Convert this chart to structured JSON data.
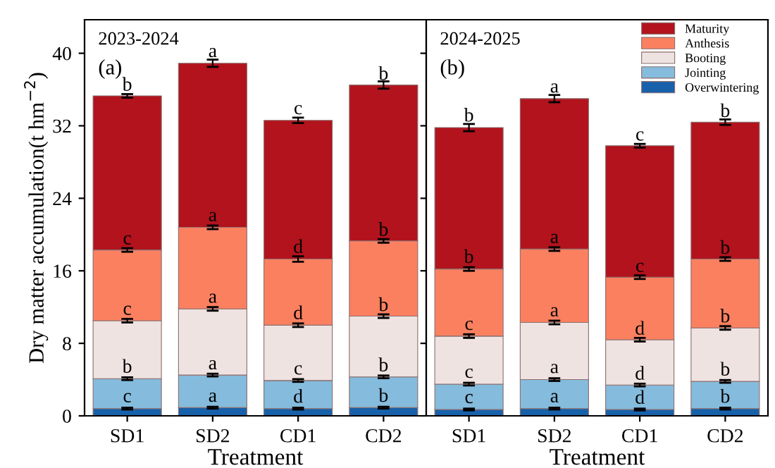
{
  "chart_data": [
    {
      "type": "bar",
      "stacked": true,
      "title": "2023-2024",
      "subtitle": "(a)",
      "xlabel": "Treatment",
      "ylabel": "Dry matter accumulation(t hm$^{−2}$)",
      "categories": [
        "SD1",
        "SD2",
        "CD1",
        "CD2"
      ],
      "ylim": [
        0,
        43.7
      ],
      "yticks": [
        0,
        8,
        16,
        24,
        32,
        40
      ],
      "legend": false,
      "grid": false,
      "series": [
        {
          "color": "#1761aa",
          "values": [
            0.8,
            0.9,
            0.8,
            0.9
          ],
          "errors": [
            0.1,
            0.1,
            0.1,
            0.1
          ]
        },
        {
          "color": "#85bbdc",
          "values": [
            3.3,
            3.6,
            3.1,
            3.4
          ],
          "errors": [
            0.15,
            0.15,
            0.15,
            0.15
          ]
        },
        {
          "color": "#efe3e1",
          "values": [
            6.4,
            7.3,
            6.1,
            6.7
          ],
          "errors": [
            0.2,
            0.2,
            0.2,
            0.2
          ]
        },
        {
          "color": "#fb8060",
          "values": [
            7.8,
            9.0,
            7.3,
            8.3
          ],
          "errors": [
            0.2,
            0.2,
            0.3,
            0.2
          ]
        },
        {
          "color": "#b2131d",
          "values": [
            17.0,
            18.1,
            15.3,
            17.2
          ],
          "errors": [
            0.2,
            0.4,
            0.3,
            0.4
          ]
        }
      ],
      "annotations": [
        {
          "text": "c",
          "x": "SD1",
          "y": 0.83
        },
        {
          "text": "a",
          "x": "SD2",
          "y": 0.88
        },
        {
          "text": "d",
          "x": "CD1",
          "y": 0.78
        },
        {
          "text": "b",
          "x": "CD2",
          "y": 0.88
        },
        {
          "text": "b",
          "x": "SD1",
          "y": 4.09
        },
        {
          "text": "a",
          "x": "SD2",
          "y": 4.46
        },
        {
          "text": "c",
          "x": "CD1",
          "y": 3.89
        },
        {
          "text": "b",
          "x": "CD2",
          "y": 4.25
        },
        {
          "text": "c",
          "x": "SD1",
          "y": 10.47
        },
        {
          "text": "a",
          "x": "SD2",
          "y": 11.8
        },
        {
          "text": "d",
          "x": "CD1",
          "y": 10.0
        },
        {
          "text": "b",
          "x": "CD2",
          "y": 10.9
        },
        {
          "text": "c",
          "x": "SD1",
          "y": 18.24
        },
        {
          "text": "a",
          "x": "SD2",
          "y": 20.8
        },
        {
          "text": "d",
          "x": "CD1",
          "y": 17.3
        },
        {
          "text": "b",
          "x": "CD2",
          "y": 19.2
        },
        {
          "text": "b",
          "x": "SD1",
          "y": 35.2
        },
        {
          "text": "a",
          "x": "SD2",
          "y": 38.9
        },
        {
          "text": "c",
          "x": "CD1",
          "y": 32.6
        },
        {
          "text": "b",
          "x": "CD2",
          "y": 36.4
        }
      ]
    },
    {
      "type": "bar",
      "stacked": true,
      "title": "2024-2025",
      "subtitle": "(b)",
      "xlabel": "Treatment",
      "categories": [
        "SD1",
        "SD2",
        "CD1",
        "CD2"
      ],
      "ylim": [
        0,
        43.7
      ],
      "yticks": [
        0,
        8,
        16,
        24,
        32,
        40
      ],
      "tick_labels": "x",
      "legend": "top right",
      "grid": false,
      "series": [
        {
          "name": "Overwintering",
          "color": "#1761aa",
          "values": [
            0.7,
            0.8,
            0.7,
            0.8
          ],
          "errors": [
            0.1,
            0.1,
            0.1,
            0.1
          ]
        },
        {
          "name": "Jointing",
          "color": "#85bbdc",
          "values": [
            2.8,
            3.2,
            2.7,
            3.0
          ],
          "errors": [
            0.15,
            0.15,
            0.15,
            0.15
          ]
        },
        {
          "name": "Booting",
          "color": "#efe3e1",
          "values": [
            5.3,
            6.3,
            5.0,
            5.9
          ],
          "errors": [
            0.2,
            0.2,
            0.2,
            0.2
          ]
        },
        {
          "name": "Anthesis",
          "color": "#fb8060",
          "values": [
            7.4,
            8.1,
            6.9,
            7.6
          ],
          "errors": [
            0.2,
            0.2,
            0.2,
            0.2
          ]
        },
        {
          "name": "Maturity",
          "color": "#b2131d",
          "values": [
            15.6,
            16.6,
            14.5,
            15.1
          ],
          "errors": [
            0.4,
            0.4,
            0.2,
            0.3
          ]
        }
      ],
      "annotations": [
        {
          "text": "c",
          "x": "SD1",
          "y": 0.73
        },
        {
          "text": "a",
          "x": "SD2",
          "y": 0.83
        },
        {
          "text": "d",
          "x": "CD1",
          "y": 0.67
        },
        {
          "text": "b",
          "x": "CD2",
          "y": 0.78
        },
        {
          "text": "c",
          "x": "SD1",
          "y": 3.52
        },
        {
          "text": "a",
          "x": "SD2",
          "y": 4.04
        },
        {
          "text": "d",
          "x": "CD1",
          "y": 3.32
        },
        {
          "text": "b",
          "x": "CD2",
          "y": 3.78
        },
        {
          "text": "c",
          "x": "SD1",
          "y": 8.81
        },
        {
          "text": "a",
          "x": "SD2",
          "y": 10.3
        },
        {
          "text": "d",
          "x": "CD1",
          "y": 8.29
        },
        {
          "text": "b",
          "x": "CD2",
          "y": 9.64
        },
        {
          "text": "b",
          "x": "SD1",
          "y": 16.2
        },
        {
          "text": "a",
          "x": "SD2",
          "y": 18.4
        },
        {
          "text": "c",
          "x": "CD1",
          "y": 15.2
        },
        {
          "text": "b",
          "x": "CD2",
          "y": 17.2
        },
        {
          "text": "b",
          "x": "SD1",
          "y": 31.8
        },
        {
          "text": "a",
          "x": "SD2",
          "y": 35.0
        },
        {
          "text": "c",
          "x": "CD1",
          "y": 29.7
        },
        {
          "text": "b",
          "x": "CD2",
          "y": 32.3
        }
      ]
    }
  ]
}
